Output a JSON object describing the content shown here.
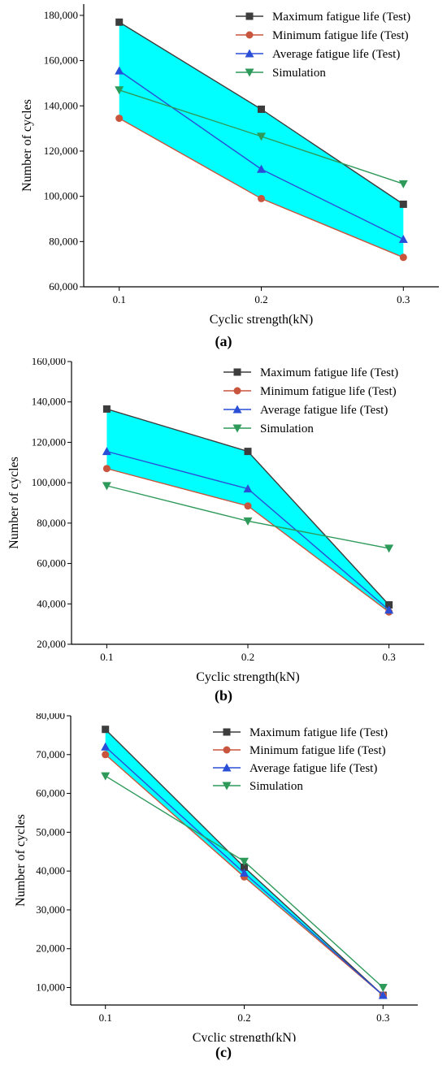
{
  "legend": [
    "Maximum fatigue life (Test)",
    "Minimum fatigue life (Test)",
    "Average fatigue life (Test)",
    "Simulation"
  ],
  "colors": {
    "max": "#3d3d3d",
    "min": "#c8553d",
    "avg": "#2a4fd6",
    "sim": "#2e9a5a",
    "band": "#00ffff"
  },
  "chart_data": [
    {
      "type": "line",
      "panel": "a",
      "caption": "(a)",
      "xlabel": "Cyclic strength(kN)",
      "ylabel": "Number of cycles",
      "x": [
        0.1,
        0.2,
        0.3
      ],
      "x_tick_labels": [
        "0.1",
        "0.2",
        "0.3"
      ],
      "xlim": [
        0.075,
        0.325
      ],
      "ylim": [
        60000,
        185000
      ],
      "y_ticks": [
        60000,
        80000,
        100000,
        120000,
        140000,
        160000,
        180000
      ],
      "y_tick_labels": [
        "60,000",
        "80,000",
        "100,000",
        "120,000",
        "140,000",
        "160,000",
        "180,000"
      ],
      "legend_position": "top-right",
      "fill_between": [
        "Maximum fatigue life (Test)",
        "Minimum fatigue life (Test)"
      ],
      "series": [
        {
          "name": "Maximum fatigue life (Test)",
          "marker": "square",
          "values": [
            177000,
            138500,
            96500
          ]
        },
        {
          "name": "Minimum fatigue life (Test)",
          "marker": "circle",
          "values": [
            134500,
            99000,
            73000
          ]
        },
        {
          "name": "Average fatigue life (Test)",
          "marker": "triangle-up",
          "values": [
            155500,
            112000,
            81000
          ]
        },
        {
          "name": "Simulation",
          "marker": "triangle-down",
          "values": [
            147000,
            126500,
            105500
          ]
        }
      ]
    },
    {
      "type": "line",
      "panel": "b",
      "caption": "(b)",
      "xlabel": "Cyclic strength(kN)",
      "ylabel": "Number of cycles",
      "x": [
        0.1,
        0.2,
        0.3
      ],
      "x_tick_labels": [
        "0.1",
        "0.2",
        "0.3"
      ],
      "xlim": [
        0.075,
        0.325
      ],
      "ylim": [
        20000,
        160000
      ],
      "y_ticks": [
        20000,
        40000,
        60000,
        80000,
        100000,
        120000,
        140000,
        160000
      ],
      "y_tick_labels": [
        "20,000",
        "40,000",
        "60,000",
        "80,000",
        "100,000",
        "120,000",
        "140,000",
        "160,000"
      ],
      "legend_position": "top-right",
      "fill_between": [
        "Maximum fatigue life (Test)",
        "Minimum fatigue life (Test)"
      ],
      "series": [
        {
          "name": "Maximum fatigue life (Test)",
          "marker": "square",
          "values": [
            136500,
            115500,
            39500
          ]
        },
        {
          "name": "Minimum fatigue life (Test)",
          "marker": "circle",
          "values": [
            107000,
            88500,
            36000
          ]
        },
        {
          "name": "Average fatigue life (Test)",
          "marker": "triangle-up",
          "values": [
            115500,
            97000,
            37000
          ]
        },
        {
          "name": "Simulation",
          "marker": "triangle-down",
          "values": [
            98500,
            81000,
            67500
          ]
        }
      ]
    },
    {
      "type": "line",
      "panel": "c",
      "caption": "(c)",
      "xlabel": "Cyclic strength(kN)",
      "ylabel": "Number of cycles",
      "x": [
        0.1,
        0.2,
        0.3
      ],
      "x_tick_labels": [
        "0.1",
        "0.2",
        "0.3"
      ],
      "xlim": [
        0.075,
        0.325
      ],
      "ylim": [
        5500,
        80000
      ],
      "y_ticks": [
        10000,
        20000,
        30000,
        40000,
        50000,
        60000,
        70000,
        80000
      ],
      "y_tick_labels": [
        "10,000",
        "20,000",
        "30,000",
        "40,000",
        "50,000",
        "60,000",
        "70,000",
        "80,000"
      ],
      "legend_position": "top-right",
      "fill_between": [
        "Maximum fatigue life (Test)",
        "Minimum fatigue life (Test)"
      ],
      "series": [
        {
          "name": "Maximum fatigue life (Test)",
          "marker": "square",
          "values": [
            76500,
            41000,
            8000
          ]
        },
        {
          "name": "Minimum fatigue life (Test)",
          "marker": "circle",
          "values": [
            70000,
            38500,
            8000
          ]
        },
        {
          "name": "Average fatigue life (Test)",
          "marker": "triangle-up",
          "values": [
            72000,
            39500,
            8000
          ]
        },
        {
          "name": "Simulation",
          "marker": "triangle-down",
          "values": [
            64500,
            42500,
            10000
          ]
        }
      ]
    }
  ]
}
